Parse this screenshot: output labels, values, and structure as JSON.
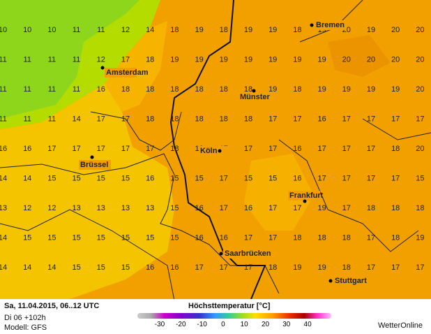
{
  "map": {
    "grid": {
      "rows": [
        [
          10,
          10,
          10,
          11,
          11,
          12,
          14,
          18,
          19,
          18,
          19,
          19,
          18,
          19,
          20,
          19,
          20,
          20
        ],
        [
          11,
          11,
          11,
          11,
          12,
          17,
          18,
          19,
          19,
          19,
          19,
          19,
          19,
          19,
          20,
          20,
          20,
          20
        ],
        [
          11,
          11,
          11,
          11,
          16,
          18,
          18,
          18,
          18,
          18,
          18,
          19,
          18,
          19,
          19,
          19,
          19,
          20
        ],
        [
          11,
          11,
          11,
          14,
          17,
          17,
          18,
          18,
          18,
          18,
          18,
          17,
          17,
          16,
          17,
          17,
          17,
          17
        ],
        [
          16,
          16,
          17,
          17,
          17,
          17,
          17,
          18,
          18,
          17,
          17,
          17,
          16,
          17,
          17,
          17,
          18,
          20
        ],
        [
          14,
          14,
          15,
          15,
          15,
          15,
          16,
          15,
          15,
          17,
          15,
          15,
          16,
          17,
          17,
          17,
          17,
          15
        ],
        [
          13,
          12,
          12,
          13,
          13,
          13,
          13,
          15,
          16,
          17,
          16,
          17,
          17,
          19,
          17,
          18,
          18,
          18
        ],
        [
          14,
          15,
          15,
          15,
          15,
          15,
          15,
          15,
          16,
          16,
          17,
          17,
          18,
          18,
          18,
          17,
          18,
          19
        ],
        [
          14,
          14,
          14,
          15,
          15,
          15,
          16,
          16,
          17,
          17,
          17,
          18,
          19,
          19,
          18,
          17,
          17,
          17
        ]
      ]
    },
    "cities": [
      "Bremen",
      "Amsterdam",
      "Münster",
      "Köln",
      "Brüssel",
      "Frankfurt",
      "Saarbrücken",
      "Stuttgart"
    ]
  },
  "footer": {
    "date": "Sa, 11.04.2015, 06..12 UTC",
    "run": "Di 06 +102h",
    "model": "Modell: GFS",
    "title": "Höchsttemperatur [°C]",
    "scale": [
      -30,
      -20,
      -10,
      0,
      10,
      20,
      30,
      40
    ],
    "brand": "WetterOnline"
  }
}
